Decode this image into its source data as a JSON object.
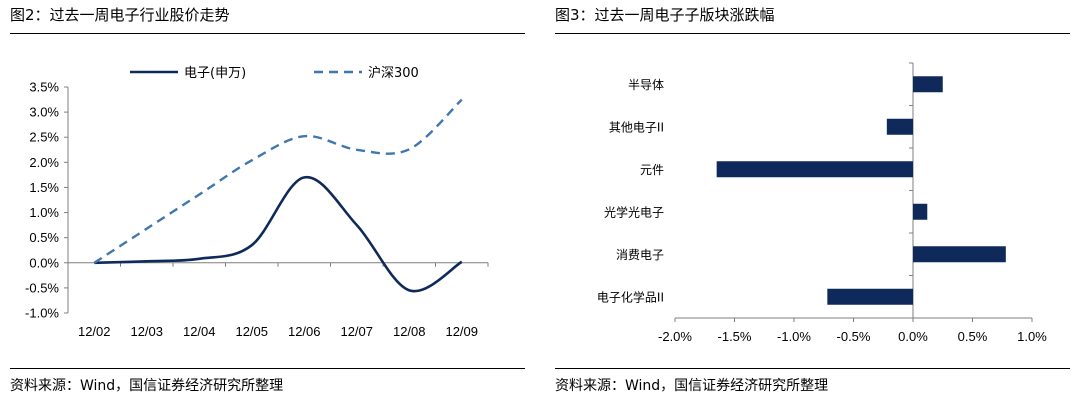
{
  "left_figure": {
    "title": "图2：过去一周电子行业股价走势",
    "source": "资料来源：Wind，国信证券经济研究所整理"
  },
  "right_figure": {
    "title": "图3：过去一周电子子版块涨跌幅",
    "source": "资料来源：Wind，国信证券经济研究所整理"
  },
  "colors": {
    "navy": "#0f2a5a",
    "dashed_blue": "#3f77ae",
    "axis": "#7f7f7f"
  },
  "chart_data": [
    {
      "type": "line",
      "title": "",
      "xlabel": "",
      "ylabel": "",
      "categories": [
        "12/02",
        "12/03",
        "12/04",
        "12/05",
        "12/06",
        "12/07",
        "12/08",
        "12/09"
      ],
      "y_ticks": [
        "3.5%",
        "3.0%",
        "2.5%",
        "2.0%",
        "1.5%",
        "1.0%",
        "0.5%",
        "0.0%",
        "-0.5%",
        "-1.0%"
      ],
      "ylim": [
        -1.0,
        3.5
      ],
      "grid": false,
      "legend_position": "top",
      "series": [
        {
          "name": "电子(申万)",
          "style": "solid",
          "values": [
            0.0,
            0.03,
            0.08,
            0.35,
            1.7,
            0.75,
            -0.55,
            0.02
          ]
        },
        {
          "name": "沪深300",
          "style": "dashed",
          "values": [
            0.0,
            0.68,
            1.36,
            2.04,
            2.52,
            2.25,
            2.26,
            3.25
          ]
        }
      ]
    },
    {
      "type": "bar",
      "orientation": "horizontal",
      "title": "",
      "xlabel": "",
      "ylabel": "",
      "categories": [
        "半导体",
        "其他电子II",
        "元件",
        "光学光电子",
        "消费电子",
        "电子化学品II"
      ],
      "values": [
        0.25,
        -0.22,
        -1.65,
        0.12,
        0.78,
        -0.72
      ],
      "x_ticks": [
        "-2.0%",
        "-1.5%",
        "-1.0%",
        "-0.5%",
        "0.0%",
        "0.5%",
        "1.0%"
      ],
      "xlim": [
        -2.0,
        1.0
      ],
      "grid": false
    }
  ]
}
